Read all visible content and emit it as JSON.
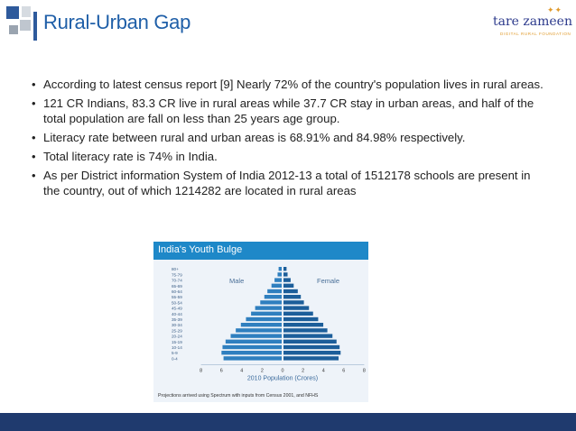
{
  "slide": {
    "title": "Rural-Urban Gap",
    "accent_color": "#1f5fa8",
    "footer_color": "#1f3a6e"
  },
  "logo": {
    "brand": "tare zameen par",
    "tagline": "DIGITAL RURAL FOUNDATION"
  },
  "bullets": [
    "According to latest census report [9] Nearly 72% of the country's population lives in rural areas.",
    " 121 CR Indians, 83.3 CR live in rural areas while 37.7 CR stay in urban areas, and half of the total population are fall on less than 25 years age group.",
    "Literacy rate between rural and urban areas is 68.91% and 84.98% respectively.",
    "Total literacy rate is 74% in India.",
    "As per District information System of India 2012-13 a total of 1512178 schools are present in the country, out of which 1214282 are located in rural areas"
  ],
  "figure": {
    "heading": "India's Youth Bulge",
    "note": "Projections arrived using Spectrum with inputs from Census 2001, and NFHS"
  },
  "chart_data": {
    "type": "bar",
    "orientation": "horizontal",
    "title": "",
    "xlabel": "2010 Population (Crores)",
    "ylabel": "",
    "xlim": [
      -8,
      8
    ],
    "x_ticks": [
      "8",
      "6",
      "4",
      "2",
      "0",
      "2",
      "4",
      "6",
      "8"
    ],
    "categories": [
      "80+",
      "75-79",
      "70-74",
      "65-69",
      "60-64",
      "55-59",
      "50-54",
      "45-49",
      "40-44",
      "35-39",
      "30-34",
      "25-29",
      "20-24",
      "15-19",
      "10-14",
      "5-9",
      "0-4"
    ],
    "series": [
      {
        "name": "Male",
        "color": "#2f7fbf",
        "values": [
          0.3,
          0.4,
          0.7,
          1.0,
          1.4,
          1.7,
          2.1,
          2.6,
          3.0,
          3.5,
          4.0,
          4.5,
          5.0,
          5.5,
          5.8,
          5.9,
          5.7
        ]
      },
      {
        "name": "Female",
        "color": "#1c5e9a",
        "values": [
          0.3,
          0.4,
          0.7,
          1.0,
          1.4,
          1.7,
          2.0,
          2.5,
          2.9,
          3.4,
          3.9,
          4.3,
          4.8,
          5.2,
          5.5,
          5.6,
          5.4
        ]
      }
    ]
  }
}
